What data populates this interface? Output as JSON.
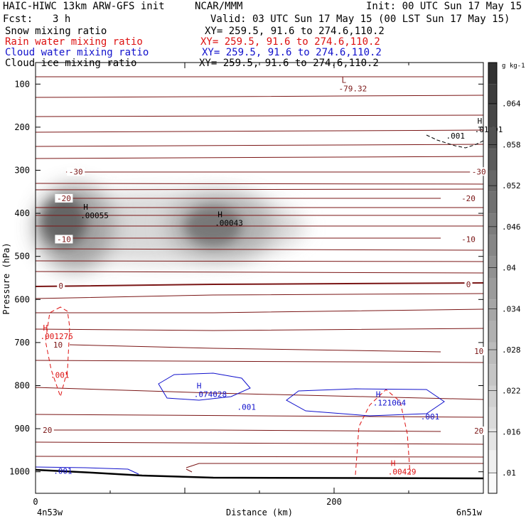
{
  "header": {
    "model": "HAIC-HIWC 13km ARW-GFS init",
    "center": "NCAR/MMM",
    "init": "Init: 00 UTC Sun 17 May 15",
    "fcst_label": "Fcst:",
    "fcst_value": "3 h",
    "valid": "Valid: 03 UTC Sun 17 May 15 (00 LST Sun 17 May 15)"
  },
  "fields": [
    {
      "name": "Snow mixing ratio",
      "xy": "XY= 259.5, 91.6 to 274.6,110.2",
      "color": "#000000"
    },
    {
      "name": "Rain water mixing ratio",
      "xy": "XY= 259.5, 91.6 to 274.6,110.2",
      "color": "#dd1111"
    },
    {
      "name": "Cloud water mixing ratio",
      "xy": "XY= 259.5, 91.6 to 274.6,110.2",
      "color": "#1111cc"
    },
    {
      "name": "Cloud ice mixing ratio",
      "xy": "XY= 259.5, 91.6 to 274.6,110.2",
      "color": "#000000"
    }
  ],
  "chart_data": {
    "type": "heatmap",
    "xlabel": "Distance (km)",
    "ylabel": "Pressure (hPa)",
    "x_ticks": [
      "0",
      "200"
    ],
    "x_tick_values": [
      0,
      200
    ],
    "xlim": [
      0,
      300
    ],
    "y_ticks": [
      "100",
      "200",
      "300",
      "400",
      "500",
      "600",
      "700",
      "800",
      "900",
      "1000"
    ],
    "y_tick_values": [
      100,
      200,
      300,
      400,
      500,
      600,
      700,
      800,
      900,
      1000
    ],
    "ylim": [
      1050,
      50
    ],
    "left_endpoint": "4n53w",
    "right_endpoint": "6n51w",
    "colorbar": {
      "unit": "g kg-1",
      "ticks": [
        ".01",
        ".016",
        ".022",
        ".028",
        ".034",
        ".04",
        ".046",
        ".052",
        ".058",
        ".064"
      ],
      "tick_values": [
        0.01,
        0.016,
        0.022,
        0.028,
        0.034,
        0.04,
        0.046,
        0.052,
        0.058,
        0.064
      ],
      "range": [
        0.007,
        0.07
      ]
    },
    "shaded_snow_maxima": [
      {
        "label": "H",
        "value": ".00055",
        "x": 32,
        "p": 395
      },
      {
        "label": "H",
        "value": ".00043",
        "x": 122,
        "p": 412
      }
    ],
    "temperature_labels": [
      {
        "text": "-30",
        "x": 27,
        "p": 303,
        "side": "left"
      },
      {
        "text": "-30",
        "x": 297,
        "p": 303,
        "side": "right"
      },
      {
        "text": "-20",
        "x": 19,
        "p": 365,
        "side": "left"
      },
      {
        "text": "-20",
        "x": 290,
        "p": 365,
        "side": "right"
      },
      {
        "text": "-10",
        "x": 19,
        "p": 460,
        "side": "left"
      },
      {
        "text": "-10",
        "x": 290,
        "p": 460,
        "side": "right"
      },
      {
        "text": "0",
        "x": 17,
        "p": 568,
        "side": "left"
      },
      {
        "text": "0",
        "x": 290,
        "p": 565,
        "side": "right"
      },
      {
        "text": "10",
        "x": 15,
        "p": 705,
        "side": "left"
      },
      {
        "text": "10",
        "x": 297,
        "p": 720,
        "side": "right"
      },
      {
        "text": "20",
        "x": 8,
        "p": 903,
        "side": "left"
      },
      {
        "text": "20",
        "x": 297,
        "p": 905,
        "side": "right"
      }
    ],
    "low_label": {
      "label": "L",
      "value": "-79.32",
      "x": 205,
      "p": 100
    },
    "rain_labels": [
      {
        "label": "H",
        "value": ".001275",
        "x": 5,
        "p": 675
      },
      {
        "label": "",
        "value": ".001",
        "x": 10,
        "p": 765
      },
      {
        "label": "H",
        "value": ".00429",
        "x": 238,
        "p": 990
      }
    ],
    "cloud_water_labels": [
      {
        "label": "H",
        "value": ".074028",
        "x": 108,
        "p": 810
      },
      {
        "label": "",
        "value": ".001",
        "x": 135,
        "p": 840
      },
      {
        "label": "H",
        "value": ".121064",
        "x": 228,
        "p": 830
      },
      {
        "label": "",
        "value": ".001",
        "x": 258,
        "p": 862
      },
      {
        "label": "",
        "value": ".001",
        "x": 12,
        "p": 988
      }
    ],
    "cloud_ice_labels": [
      {
        "label": "H",
        "value": ".01201",
        "x": 296,
        "p": 195
      },
      {
        "label": "",
        "value": ".001",
        "x": 275,
        "p": 210
      }
    ]
  }
}
